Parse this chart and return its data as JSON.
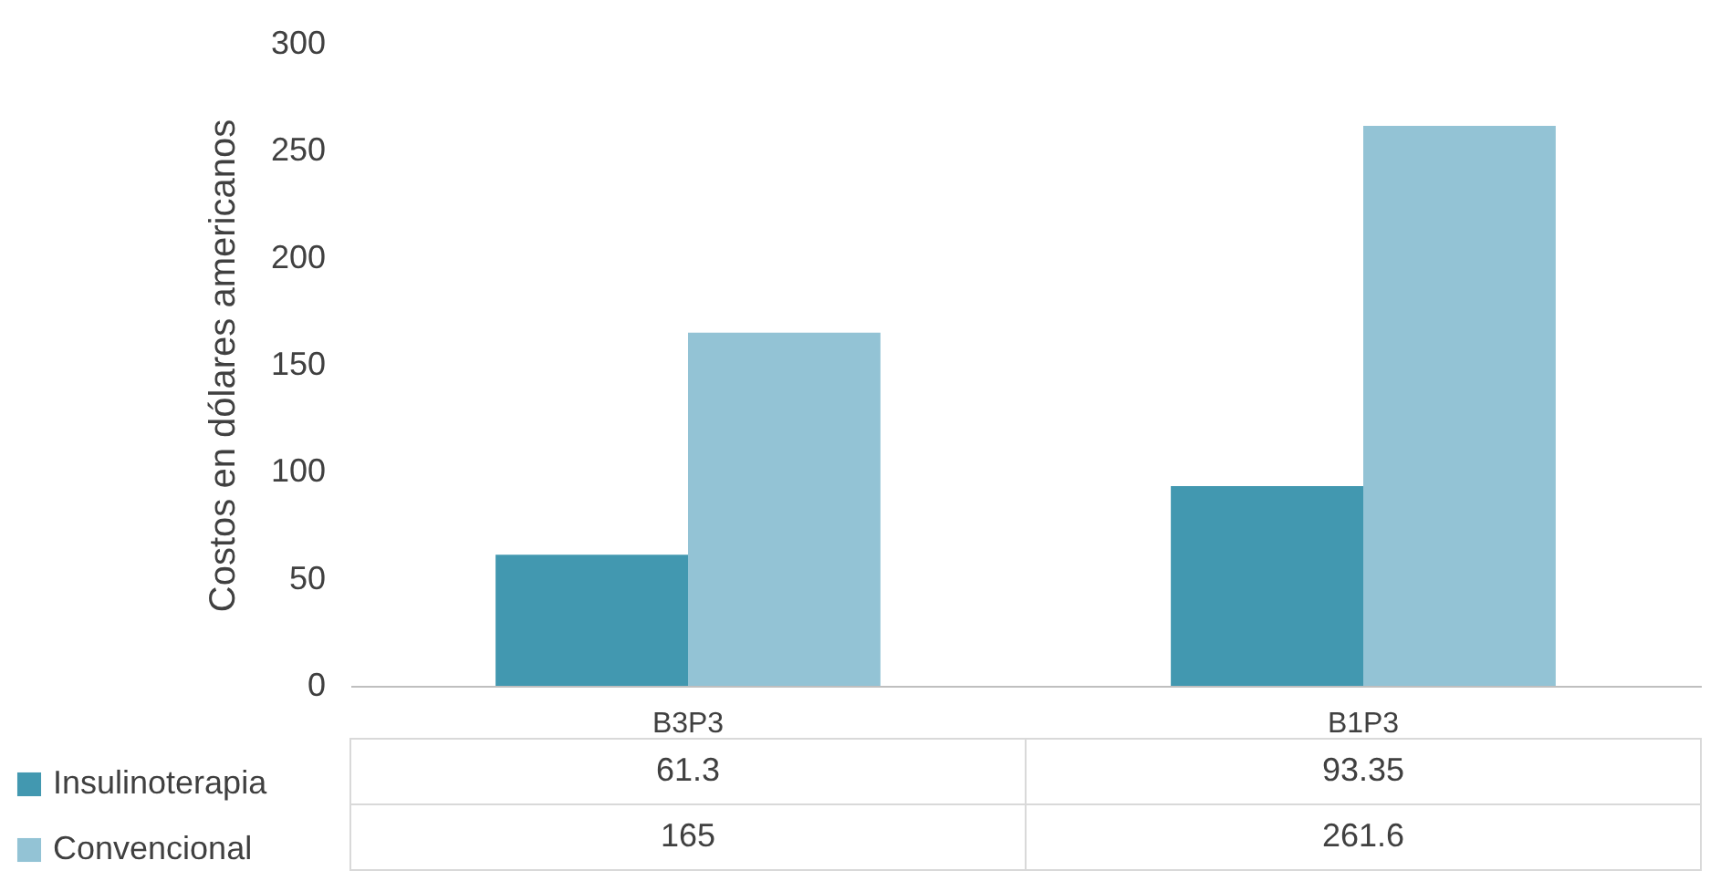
{
  "chart_data": {
    "type": "bar",
    "ylabel": "Costos en dólares americanos",
    "categories": [
      "B3P3",
      "B1P3"
    ],
    "series": [
      {
        "name": "Insulinoterapia",
        "color": "#4298b0",
        "values": [
          61.3,
          93.35
        ]
      },
      {
        "name": "Convencional",
        "color": "#93c3d5",
        "values": [
          165,
          261.6
        ]
      }
    ],
    "ylim": [
      0,
      300
    ],
    "yticks": [
      0,
      50,
      100,
      150,
      200,
      250,
      300
    ],
    "grid": false,
    "data_labels": true,
    "legend": "bottom left"
  }
}
